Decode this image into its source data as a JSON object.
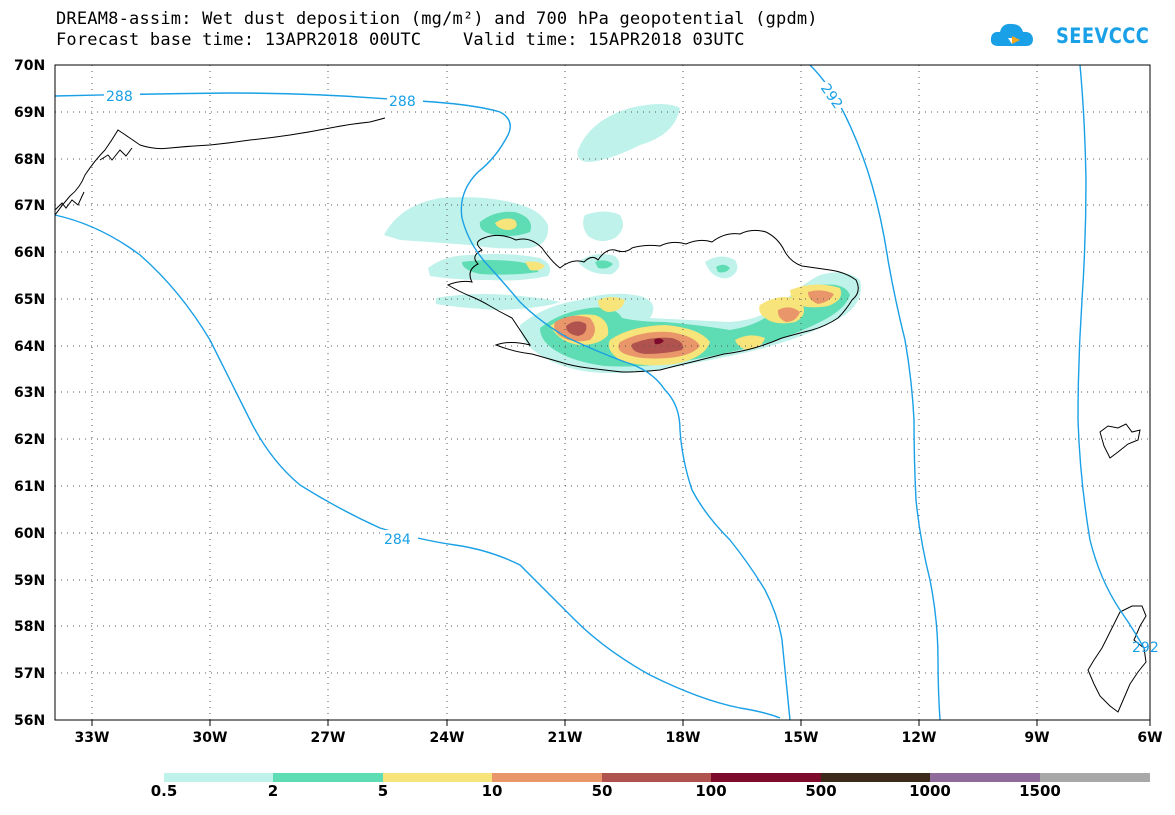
{
  "header": {
    "title_line1": "DREAM8-assim: Wet dust deposition (mg/m²) and 700 hPa geopotential (gpdm)",
    "title_line2": "Forecast base time: 13APR2018 00UTC    Valid time: 15APR2018 03UTC",
    "logo_text": "SEEVCCC"
  },
  "axes": {
    "latitudes": [
      "70N",
      "69N",
      "68N",
      "67N",
      "66N",
      "65N",
      "64N",
      "63N",
      "62N",
      "61N",
      "60N",
      "59N",
      "58N",
      "57N",
      "56N"
    ],
    "longitudes": [
      "33W",
      "30W",
      "27W",
      "24W",
      "21W",
      "18W",
      "15W",
      "12W",
      "9W",
      "6W"
    ]
  },
  "contours": {
    "color": "#1aa0e6",
    "labels": [
      "288",
      "288",
      "292",
      "284",
      "292"
    ]
  },
  "colorbar": {
    "labels": [
      "0.5",
      "2",
      "5",
      "10",
      "50",
      "100",
      "500",
      "1000",
      "1500"
    ],
    "colors": [
      "#bff2ea",
      "#5edcb3",
      "#f7e47a",
      "#e8966a",
      "#b0524e",
      "#7e0b2b",
      "#3c2a1a",
      "#8f6b9b",
      "#a8a8a8"
    ]
  },
  "dust_colors": {
    "level1": "#bff2ea",
    "level2": "#5edcb3",
    "level3": "#f7e47a",
    "level4": "#e8966a",
    "level5": "#b0524e",
    "level6": "#7e0b2b"
  }
}
